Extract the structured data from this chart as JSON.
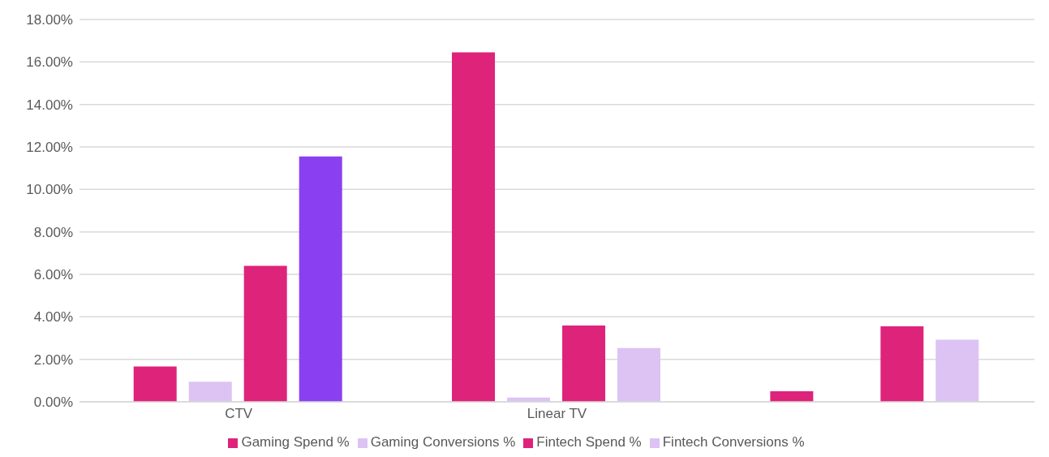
{
  "chart_data": {
    "type": "bar",
    "categories": [
      "CTV",
      "Linear TV",
      null
    ],
    "series": [
      {
        "name": "Gaming Spend %",
        "color": "#de237b",
        "values": [
          1.66,
          16.45,
          0.5
        ]
      },
      {
        "name": "Gaming Conversions %",
        "color": "#dcc3f3",
        "values": [
          0.95,
          0.2,
          0
        ]
      },
      {
        "name": "Fintech Spend %",
        "color": "#de237b",
        "values": [
          6.4,
          3.59,
          3.55
        ]
      },
      {
        "name": "Fintech Conversions %",
        "color": "#dcc3f3",
        "colors": [
          "#8a3ff0",
          "#dcc3f3",
          "#dcc3f3"
        ],
        "values": [
          11.55,
          2.53,
          2.92
        ]
      }
    ],
    "ylim": [
      0,
      18
    ],
    "yticks": [
      {
        "value": 0,
        "label": "0.00%"
      },
      {
        "value": 2,
        "label": "2.00%"
      },
      {
        "value": 4,
        "label": "4.00%"
      },
      {
        "value": 6,
        "label": "6.00%"
      },
      {
        "value": 8,
        "label": "8.00%"
      },
      {
        "value": 10,
        "label": "10.00%"
      },
      {
        "value": 12,
        "label": "12.00%"
      },
      {
        "value": 14,
        "label": "14.00%"
      },
      {
        "value": 16,
        "label": "16.00%"
      },
      {
        "value": 18,
        "label": "18.00%"
      }
    ],
    "grid": "y",
    "legend": "bottom"
  }
}
